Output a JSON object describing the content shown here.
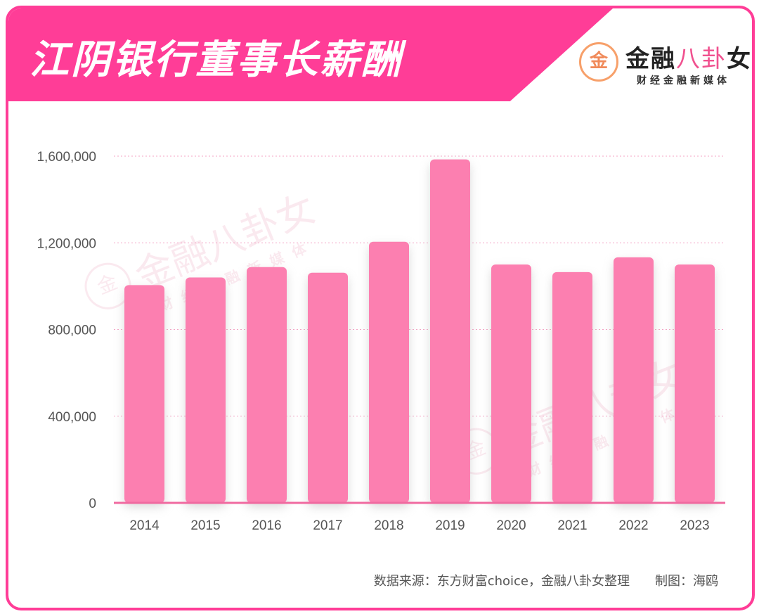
{
  "header": {
    "title": "江阴银行董事长薪酬",
    "logo": {
      "mark": "金",
      "name_part1": "金融",
      "name_part2": "八卦",
      "name_part3": "女",
      "subtitle": "财经金融新媒体"
    }
  },
  "watermark": {
    "name": "金融八卦女",
    "subtitle": "财经金融新媒体"
  },
  "colors": {
    "accent": "#ff3d97",
    "bar": "#fc7fb0",
    "grid": "#f4a6c6",
    "axis": "#f06aa0"
  },
  "chart_data": {
    "type": "bar",
    "categories": [
      "2014",
      "2015",
      "2016",
      "2017",
      "2018",
      "2019",
      "2020",
      "2021",
      "2022",
      "2023"
    ],
    "values": [
      1005000,
      1040000,
      1088000,
      1062000,
      1205000,
      1585000,
      1100000,
      1065000,
      1133000,
      1100000
    ],
    "ylim": [
      0,
      1600000
    ],
    "yticks": [
      0,
      400000,
      800000,
      1200000,
      1600000
    ],
    "ytick_labels": [
      "0",
      "400,000",
      "800,000",
      "1,200,000",
      "1,600,000"
    ],
    "grid": true
  },
  "footer": {
    "source": "数据来源：东方财富choice，金融八卦女整理　　制图：海鸥"
  }
}
